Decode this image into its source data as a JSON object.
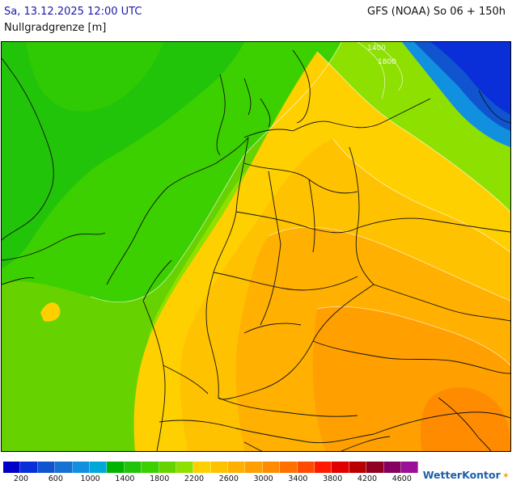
{
  "header": {
    "run_time": "Sa, 13.12.2025 12:00 UTC",
    "model_info": "GFS (NOAA) So 06 + 150h",
    "param_title": "Nullgradgrenze [m]"
  },
  "map": {
    "contour_labels": [
      "1400",
      "1800"
    ]
  },
  "legend": {
    "colors": [
      "#0000c8",
      "#0a2fd8",
      "#1054d0",
      "#1472d4",
      "#1290e0",
      "#00a8d8",
      "#00b400",
      "#22c40a",
      "#3cd000",
      "#66d200",
      "#8ee000",
      "#ffd000",
      "#ffc200",
      "#ffb000",
      "#ffa000",
      "#ff8c00",
      "#ff7000",
      "#ff4a00",
      "#ff1a00",
      "#e00000",
      "#b80000",
      "#900020",
      "#860060",
      "#9a1098"
    ],
    "labels": [
      "200",
      "600",
      "1000",
      "1400",
      "1800",
      "2200",
      "2600",
      "3000",
      "3400",
      "3800",
      "4200",
      "4600"
    ]
  },
  "brand": {
    "name": "WetterKontor",
    "icon": "sun-wave-icon"
  }
}
